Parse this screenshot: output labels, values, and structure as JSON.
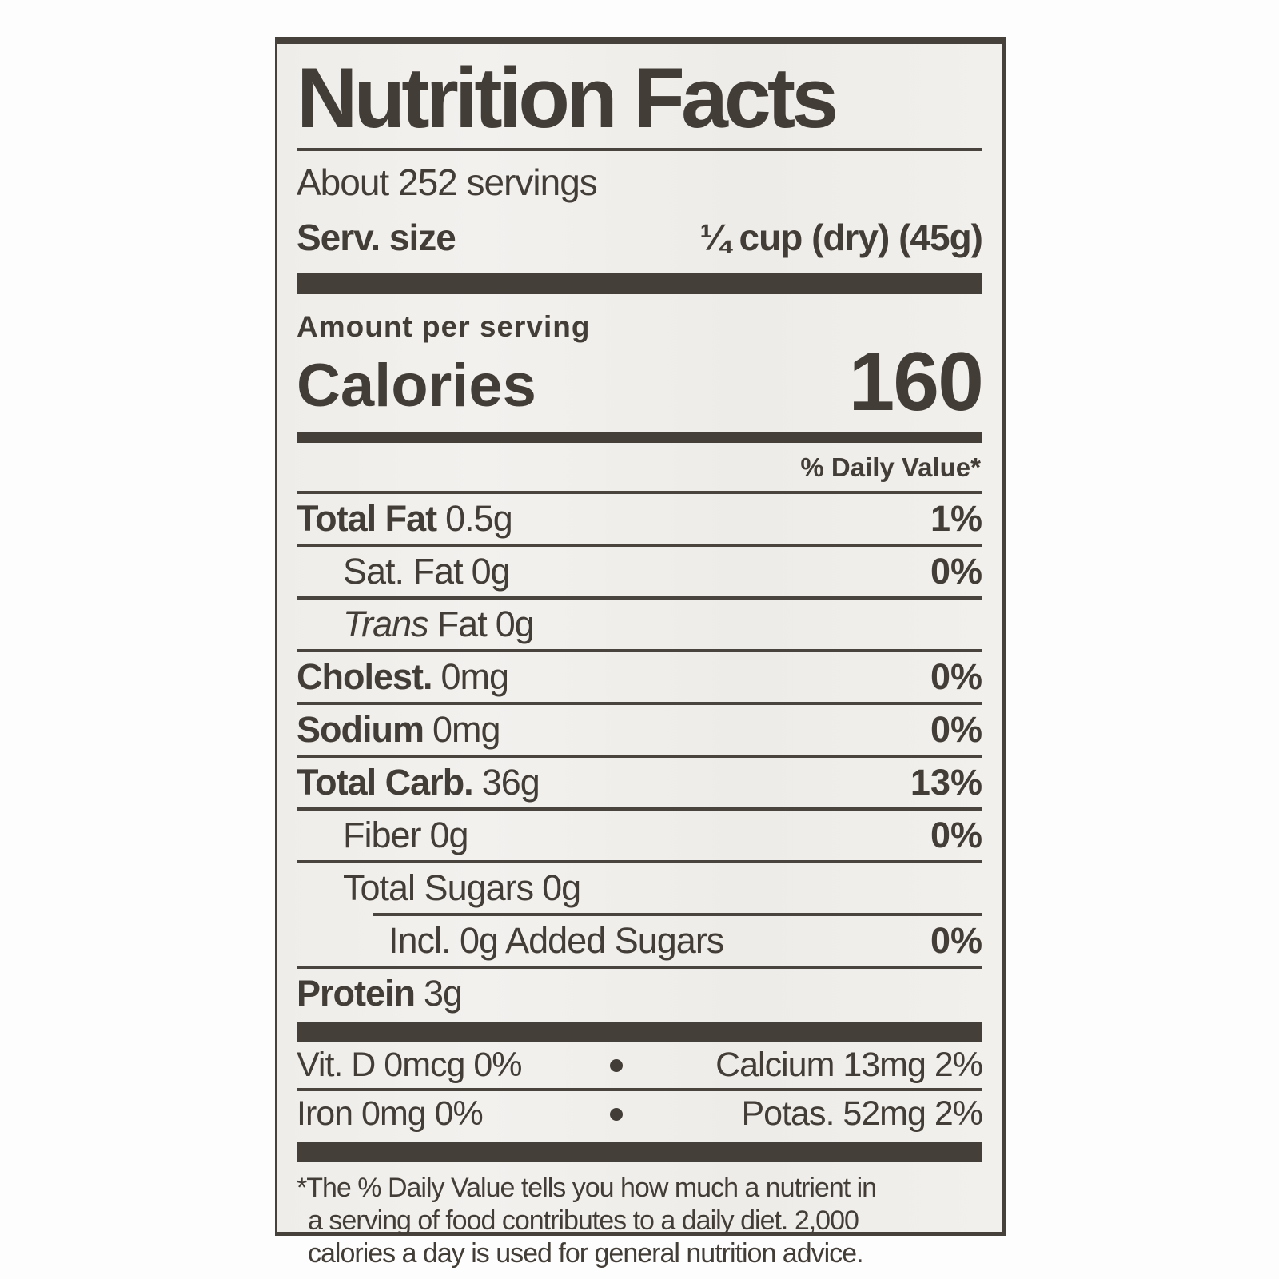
{
  "label": {
    "title": "Nutrition Facts",
    "servings_about": "About 252 servings",
    "serving_size_label": "Serv. size",
    "serving_size_value": "¼ cup (dry) (45g)",
    "amount_per_serving": "Amount per serving",
    "calories_label": "Calories",
    "calories_value": "160",
    "daily_value_header": "% Daily Value*",
    "rows": [
      {
        "name": "Total Fat",
        "amount": "0.5g",
        "dv": "1%"
      },
      {
        "name": "Sat. Fat",
        "amount": "0g",
        "dv": "0%"
      },
      {
        "name_italic": "Trans",
        "name": "Fat",
        "amount": "0g",
        "dv": ""
      },
      {
        "name": "Cholest.",
        "amount": "0mg",
        "dv": "0%"
      },
      {
        "name": "Sodium",
        "amount": "0mg",
        "dv": "0%"
      },
      {
        "name": "Total Carb.",
        "amount": "36g",
        "dv": "13%"
      },
      {
        "name": "Fiber",
        "amount": "0g",
        "dv": "0%"
      },
      {
        "name": "Total Sugars",
        "amount": "0g",
        "dv": ""
      },
      {
        "name": "Incl. 0g Added Sugars",
        "amount": "",
        "dv": "0%"
      },
      {
        "name": "Protein",
        "amount": "3g",
        "dv": ""
      }
    ],
    "micros": [
      {
        "left": "Vit. D 0mcg 0%",
        "right": "Calcium 13mg 2%"
      },
      {
        "left": "Iron 0mg 0%",
        "right": "Potas. 52mg 2%"
      }
    ],
    "footnote_lines": [
      "*The % Daily Value tells you how much a nutrient in",
      "a serving of food contributes to a daily diet. 2,000",
      "calories a day is used for general nutrition advice."
    ]
  },
  "colors": {
    "ink": "#433d37",
    "paper": "#f1efeb",
    "background": "#fdfdfd"
  }
}
